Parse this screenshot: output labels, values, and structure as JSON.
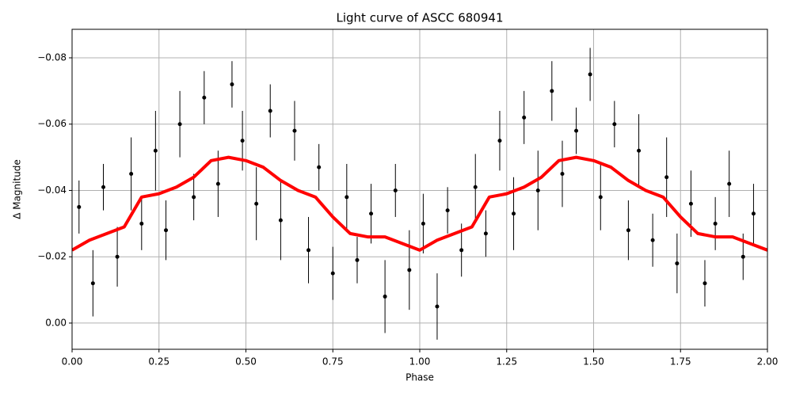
{
  "chart_data": {
    "type": "scatter",
    "title": "Light curve of ASCC 680941",
    "xlabel": "Phase",
    "ylabel": "Δ Magnitude",
    "xlim": [
      0,
      2
    ],
    "ylim": [
      0.0079,
      -0.0886
    ],
    "xticks": [
      {
        "value": 0,
        "label": "0.00"
      },
      0.25,
      {
        "value": 0.5,
        "label": "0.50"
      },
      0.75,
      {
        "value": 1,
        "label": "1.00"
      },
      1.25,
      {
        "value": 1.5,
        "label": "1.50"
      },
      1.75,
      {
        "value": 2,
        "label": "2.00"
      }
    ],
    "yticks": [
      {
        "value": -0.08,
        "label": "−0.08"
      },
      {
        "value": -0.06,
        "label": "−0.06"
      },
      {
        "value": -0.04,
        "label": "−0.04"
      },
      {
        "value": -0.02,
        "label": "−0.02"
      },
      {
        "value": 0,
        "label": "0.00"
      }
    ],
    "grid": true,
    "points": {
      "color": "#000000",
      "x": [
        0.02,
        0.06,
        0.09,
        0.13,
        0.17,
        0.2,
        0.24,
        0.27,
        0.31,
        0.35,
        0.38,
        0.42,
        0.46,
        0.49,
        0.53,
        0.57,
        0.6,
        0.64,
        0.68,
        0.71,
        0.75,
        0.79,
        0.82,
        0.86,
        0.9,
        0.93,
        0.97,
        1.01,
        1.05,
        1.08,
        1.12,
        1.16,
        1.19,
        1.23,
        1.27,
        1.3,
        1.34,
        1.38,
        1.41,
        1.45,
        1.49,
        1.52,
        1.56,
        1.6,
        1.63,
        1.67,
        1.71,
        1.74,
        1.78,
        1.82,
        1.85,
        1.89,
        1.93,
        1.96
      ],
      "values": [
        -0.035,
        -0.012,
        -0.041,
        -0.02,
        -0.045,
        -0.03,
        -0.052,
        -0.028,
        -0.06,
        -0.038,
        -0.068,
        -0.042,
        -0.072,
        -0.055,
        -0.036,
        -0.064,
        -0.031,
        -0.058,
        -0.022,
        -0.047,
        -0.015,
        -0.038,
        -0.019,
        -0.033,
        -0.008,
        -0.04,
        -0.016,
        -0.03,
        -0.005,
        -0.034,
        -0.022,
        -0.041,
        -0.027,
        -0.055,
        -0.033,
        -0.062,
        -0.04,
        -0.07,
        -0.045,
        -0.058,
        -0.075,
        -0.038,
        -0.06,
        -0.028,
        -0.052,
        -0.025,
        -0.044,
        -0.018,
        -0.036,
        -0.012,
        -0.03,
        -0.042,
        -0.02,
        -0.033
      ],
      "errors": [
        0.008,
        0.01,
        0.007,
        0.009,
        0.011,
        0.008,
        0.012,
        0.009,
        0.01,
        0.007,
        0.008,
        0.01,
        0.007,
        0.009,
        0.011,
        0.008,
        0.012,
        0.009,
        0.01,
        0.007,
        0.008,
        0.01,
        0.007,
        0.009,
        0.011,
        0.008,
        0.012,
        0.009,
        0.01,
        0.007,
        0.008,
        0.01,
        0.007,
        0.009,
        0.011,
        0.008,
        0.012,
        0.009,
        0.01,
        0.007,
        0.008,
        0.01,
        0.007,
        0.009,
        0.011,
        0.008,
        0.012,
        0.009,
        0.01,
        0.007,
        0.008,
        0.01,
        0.007,
        0.009
      ]
    },
    "model": {
      "color": "#ff0000",
      "x": [
        0,
        0.05,
        0.1,
        0.15,
        0.2,
        0.25,
        0.3,
        0.35,
        0.4,
        0.45,
        0.5,
        0.55,
        0.6,
        0.65,
        0.7,
        0.75,
        0.8,
        0.85,
        0.9,
        0.95,
        1,
        1.05,
        1.1,
        1.15,
        1.2,
        1.25,
        1.3,
        1.35,
        1.4,
        1.45,
        1.5,
        1.55,
        1.6,
        1.65,
        1.7,
        1.75,
        1.8,
        1.85,
        1.9,
        1.95,
        2
      ],
      "values": [
        -0.022,
        -0.025,
        -0.027,
        -0.029,
        -0.038,
        -0.039,
        -0.041,
        -0.044,
        -0.049,
        -0.05,
        -0.049,
        -0.047,
        -0.043,
        -0.04,
        -0.038,
        -0.032,
        -0.027,
        -0.026,
        -0.026,
        -0.024,
        -0.022,
        -0.025,
        -0.027,
        -0.029,
        -0.038,
        -0.039,
        -0.041,
        -0.044,
        -0.049,
        -0.05,
        -0.049,
        -0.047,
        -0.043,
        -0.04,
        -0.038,
        -0.032,
        -0.027,
        -0.026,
        -0.026,
        -0.024,
        -0.022
      ]
    }
  }
}
